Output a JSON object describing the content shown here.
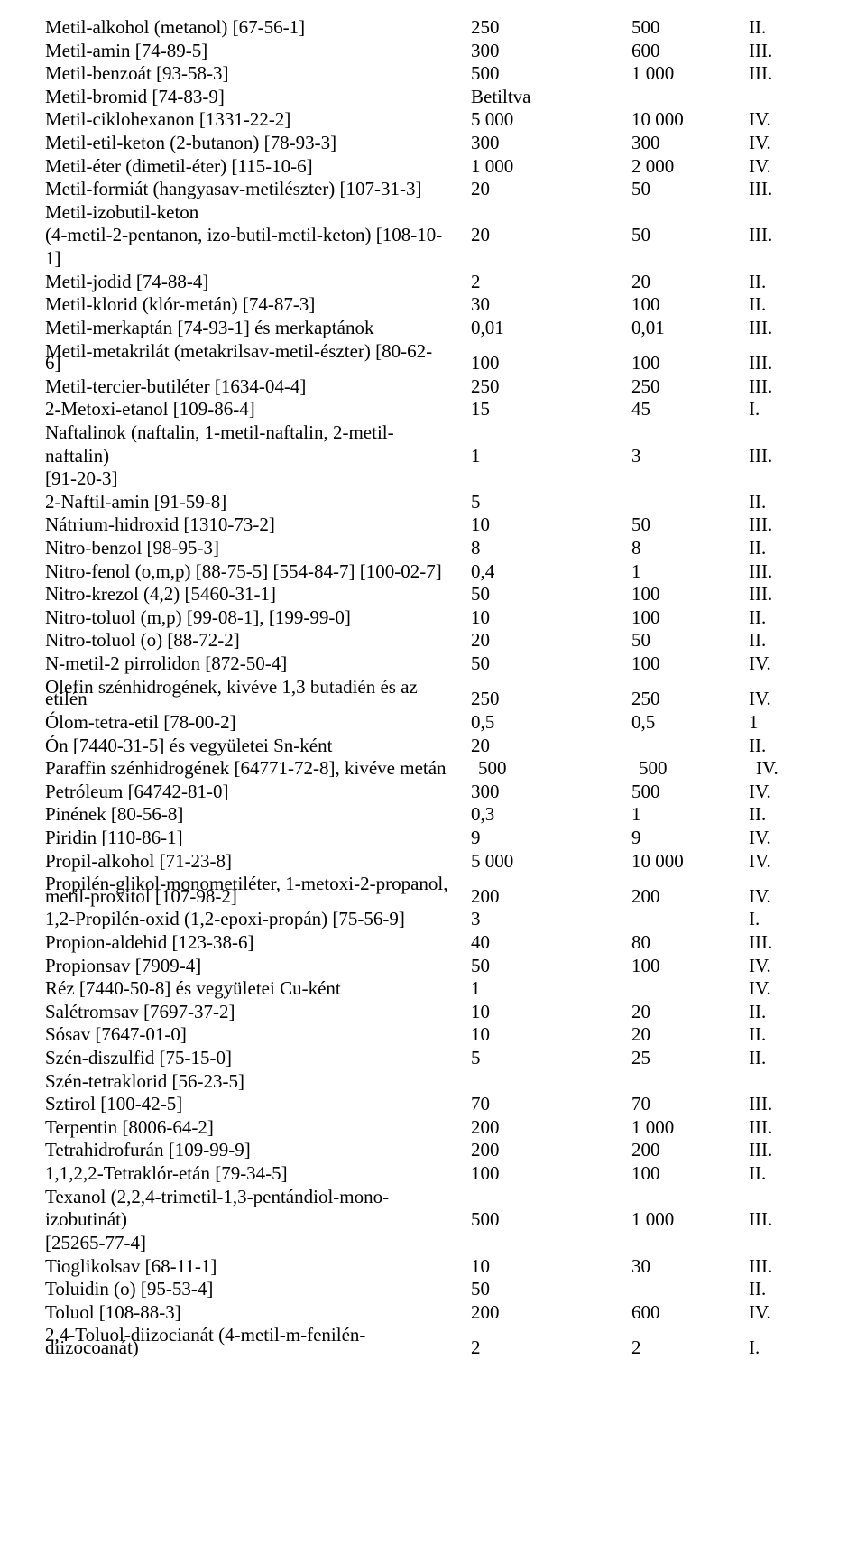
{
  "rows": [
    {
      "name": "Metil-alkohol (metanol) [67-56-1]",
      "v1": "250",
      "v2": "500",
      "cat": "II."
    },
    {
      "name": "Metil-amin [74-89-5]",
      "v1": "300",
      "v2": "600",
      "cat": "III."
    },
    {
      "name": "Metil-benzoát [93-58-3]",
      "v1": "500",
      "v2": "1 000",
      "cat": "III."
    },
    {
      "name": "Metil-bromid [74-83-9]",
      "v1": "Betiltva",
      "v2": "",
      "cat": ""
    },
    {
      "name": "Metil-ciklohexanon [1331-22-2]",
      "v1": "5 000",
      "v2": "10 000",
      "cat": "IV."
    },
    {
      "name": "Metil-etil-keton (2-butanon) [78-93-3]",
      "v1": "300",
      "v2": "300",
      "cat": "IV."
    },
    {
      "name": "Metil-éter (dimetil-éter) [115-10-6]",
      "v1": "1 000",
      "v2": "2 000",
      "cat": "IV."
    },
    {
      "name": "Metil-formiát (hangyasav-metilészter) [107-31-3]",
      "v1": "20",
      "v2": "50",
      "cat": "III."
    },
    {
      "name": "Metil-izobutil-keton",
      "v1": "",
      "v2": "",
      "cat": ""
    },
    {
      "name": "(4-metil-2-pentanon, izo-butil-metil-keton) [108-10-",
      "v1": "20",
      "v2": "50",
      "cat": "III."
    },
    {
      "name": "1]",
      "v1": "",
      "v2": "",
      "cat": ""
    },
    {
      "name": "Metil-jodid [74-88-4]",
      "v1": "2",
      "v2": "20",
      "cat": "II."
    },
    {
      "name": "Metil-klorid (klór-metán) [74-87-3]",
      "v1": "30",
      "v2": "100",
      "cat": "II."
    },
    {
      "name": "Metil-merkaptán [74-93-1] és merkaptánok",
      "v1": "0,01",
      "v2": "0,01",
      "cat": "III."
    },
    {
      "name": "Metil-metakrilát (metakrilsav-metil-észter) [80-62-",
      "v1": "",
      "v2": "",
      "cat": ""
    },
    {
      "name": "6]",
      "v1": "100",
      "v2": "100",
      "cat": "III.",
      "shift": true
    },
    {
      "name": "Metil-tercier-butiléter [1634-04-4]",
      "v1": "250",
      "v2": "250",
      "cat": "III."
    },
    {
      "name": "2-Metoxi-etanol [109-86-4]",
      "v1": "15",
      "v2": "45",
      "cat": "I."
    },
    {
      "name": "Naftalinok (naftalin, 1-metil-naftalin, 2-metil-",
      "v1": "",
      "v2": "",
      "cat": ""
    },
    {
      "name": "naftalin)",
      "v1": "1",
      "v2": "3",
      "cat": "III."
    },
    {
      "name": "[91-20-3]",
      "v1": "",
      "v2": "",
      "cat": ""
    },
    {
      "name": "2-Naftil-amin [91-59-8]",
      "v1": "5",
      "v2": "",
      "cat": "II."
    },
    {
      "name": "Nátrium-hidroxid [1310-73-2]",
      "v1": "10",
      "v2": "50",
      "cat": "III."
    },
    {
      "name": "Nitro-benzol [98-95-3]",
      "v1": "8",
      "v2": "8",
      "cat": "II."
    },
    {
      "name": "Nitro-fenol (o,m,p) [88-75-5] [554-84-7] [100-02-7]",
      "v1": "0,4",
      "v2": "1",
      "cat": "III."
    },
    {
      "name": "Nitro-krezol (4,2) [5460-31-1]",
      "v1": "50",
      "v2": "100",
      "cat": "III."
    },
    {
      "name": "Nitro-toluol (m,p) [99-08-1], [199-99-0]",
      "v1": "10",
      "v2": "100",
      "cat": "II."
    },
    {
      "name": "Nitro-toluol (o) [88-72-2]",
      "v1": "20",
      "v2": "50",
      "cat": "II."
    },
    {
      "name": "N-metil-2 pirrolidon [872-50-4]",
      "v1": "50",
      "v2": "100",
      "cat": "IV."
    },
    {
      "name": "Olefin szénhidrogének, kivéve 1,3 butadién és az",
      "v1": "",
      "v2": "",
      "cat": ""
    },
    {
      "name": "etilén",
      "v1": "250",
      "v2": "250",
      "cat": "IV.",
      "shift": true
    },
    {
      "name": "Ólom-tetra-etil [78-00-2]",
      "v1": "0,5",
      "v2": "0,5",
      "cat": "1"
    },
    {
      "name": "Ón [7440-31-5] és vegyületei Sn-ként",
      "v1": "20",
      "v2": "",
      "cat": "II."
    },
    {
      "name": "Paraffin szénhidrogének [64771-72-8], kivéve metán",
      "v1": "500",
      "v2": "500",
      "cat": "IV.",
      "shift2": true
    },
    {
      "name": "Petróleum [64742-81-0]",
      "v1": "300",
      "v2": "500",
      "cat": "IV."
    },
    {
      "name": "Pinének [80-56-8]",
      "v1": "0,3",
      "v2": "1",
      "cat": "II."
    },
    {
      "name": "Piridin [110-86-1]",
      "v1": "9",
      "v2": "9",
      "cat": "IV."
    },
    {
      "name": "Propil-alkohol [71-23-8]",
      "v1": "5 000",
      "v2": "10 000",
      "cat": "IV."
    },
    {
      "name": "Propilén-glikol-monometiléter, 1-metoxi-2-propanol,",
      "v1": "",
      "v2": "",
      "cat": ""
    },
    {
      "name": "metil-proxitol [107-98-2]",
      "v1": "200",
      "v2": "200",
      "cat": "IV.",
      "shift": true
    },
    {
      "name": "1,2-Propilén-oxid (1,2-epoxi-propán) [75-56-9]",
      "v1": "3",
      "v2": "",
      "cat": "I."
    },
    {
      "name": "Propion-aldehid [123-38-6]",
      "v1": "40",
      "v2": "80",
      "cat": "III."
    },
    {
      "name": "Propionsav [7909-4]",
      "v1": "50",
      "v2": "100",
      "cat": "IV."
    },
    {
      "name": "Réz [7440-50-8] és vegyületei Cu-ként",
      "v1": "1",
      "v2": "",
      "cat": "IV."
    },
    {
      "name": "Salétromsav [7697-37-2]",
      "v1": "10",
      "v2": "20",
      "cat": "II."
    },
    {
      "name": "Sósav [7647-01-0]",
      "v1": "10",
      "v2": "20",
      "cat": "II."
    },
    {
      "name": "Szén-diszulfid [75-15-0]",
      "v1": "5",
      "v2": "25",
      "cat": "II."
    },
    {
      "name": "Szén-tetraklorid [56-23-5]",
      "v1": "",
      "v2": "",
      "cat": ""
    },
    {
      "name": "Sztirol [100-42-5]",
      "v1": "70",
      "v2": "70",
      "cat": "III."
    },
    {
      "name": "Terpentin [8006-64-2]",
      "v1": "200",
      "v2": "1 000",
      "cat": "III."
    },
    {
      "name": "Tetrahidrofurán [109-99-9]",
      "v1": " 200",
      "v2": " 200",
      "cat": " III."
    },
    {
      "name": "1,1,2,2-Tetraklór-etán [79-34-5]",
      "v1": "100",
      "v2": "100",
      "cat": "II."
    },
    {
      "name": "Texanol (2,2,4-trimetil-1,3-pentándiol-mono-",
      "v1": "",
      "v2": "",
      "cat": ""
    },
    {
      "name": "izobutinát)",
      "v1": "500",
      "v2": "1 000",
      "cat": "III."
    },
    {
      "name": "[25265-77-4]",
      "v1": "",
      "v2": "",
      "cat": ""
    },
    {
      "name": "Tioglikolsav [68-11-1]",
      "v1": "10",
      "v2": "30",
      "cat": "III."
    },
    {
      "name": "Toluidin (o) [95-53-4]",
      "v1": "50",
      "v2": "",
      "cat": "II."
    },
    {
      "name": "Toluol [108-88-3]",
      "v1": "200",
      "v2": "600",
      "cat": "IV."
    },
    {
      "name": "2,4-Toluol-diizocianát (4-metil-m-fenilén-",
      "v1": "",
      "v2": "",
      "cat": ""
    },
    {
      "name": "diizocoanát)",
      "v1": "2",
      "v2": "2",
      "cat": "I.",
      "shift": true
    }
  ]
}
